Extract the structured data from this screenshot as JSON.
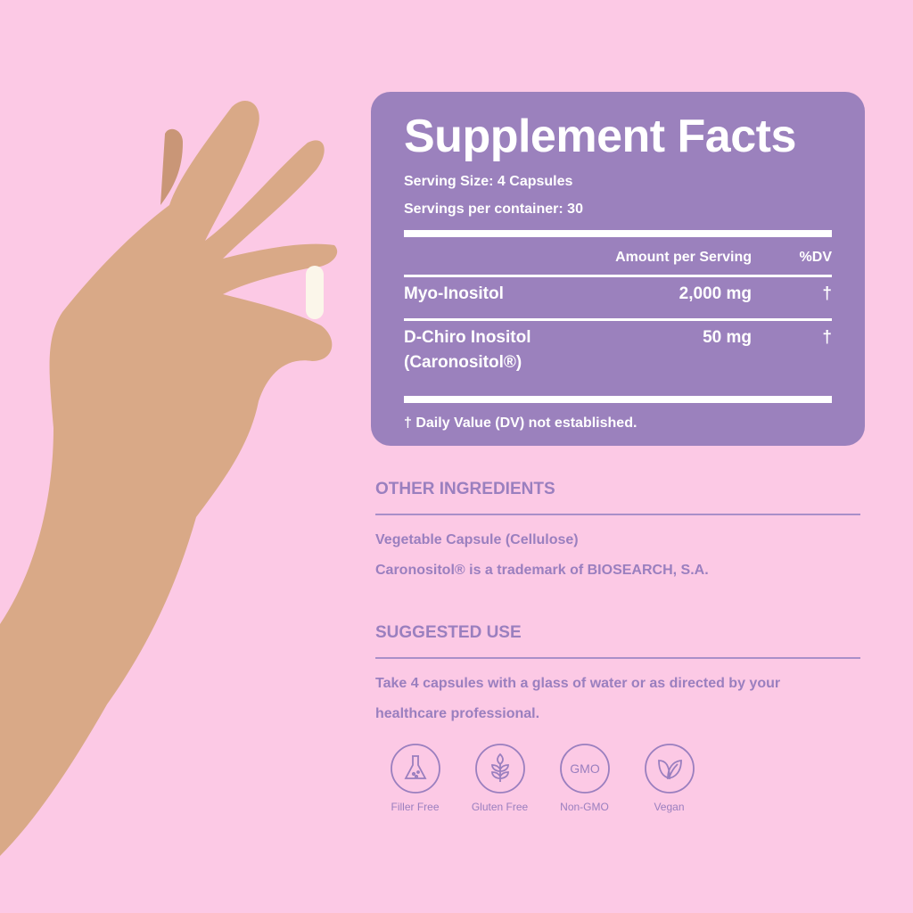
{
  "facts": {
    "title": "Supplement Facts",
    "serving_size": "Serving Size: 4 Capsules",
    "servings": "Servings per container: 30",
    "headers": {
      "amount": "Amount per Serving",
      "dv": "%DV"
    },
    "rows": [
      {
        "name": "Myo-Inositol",
        "amount": "2,000 mg",
        "dv": "†"
      },
      {
        "name": "D-Chiro Inositol",
        "name2": "(Caronositol®)",
        "amount": "50 mg",
        "dv": "†"
      }
    ],
    "footnote": "† Daily Value (DV) not established."
  },
  "other": {
    "heading": "OTHER INGREDIENTS",
    "line1": "Vegetable Capsule (Cellulose)",
    "line2": "Caronositol® is a trademark of BIOSEARCH, S.A."
  },
  "use": {
    "heading": "SUGGESTED USE",
    "line1": "Take 4 capsules with a glass of water or as directed by your",
    "line2": "healthcare professional."
  },
  "badges": [
    {
      "label": "Filler Free",
      "icon": "flask-icon"
    },
    {
      "label": "Gluten Free",
      "icon": "wheat-icon"
    },
    {
      "label": "Non-GMO",
      "icon": "gmo-icon",
      "text": "GMO"
    },
    {
      "label": "Vegan",
      "icon": "leaf-icon"
    }
  ],
  "colors": {
    "background": "#fcc9e5",
    "panel": "#9b81bd",
    "text": "#9a7fbf"
  }
}
